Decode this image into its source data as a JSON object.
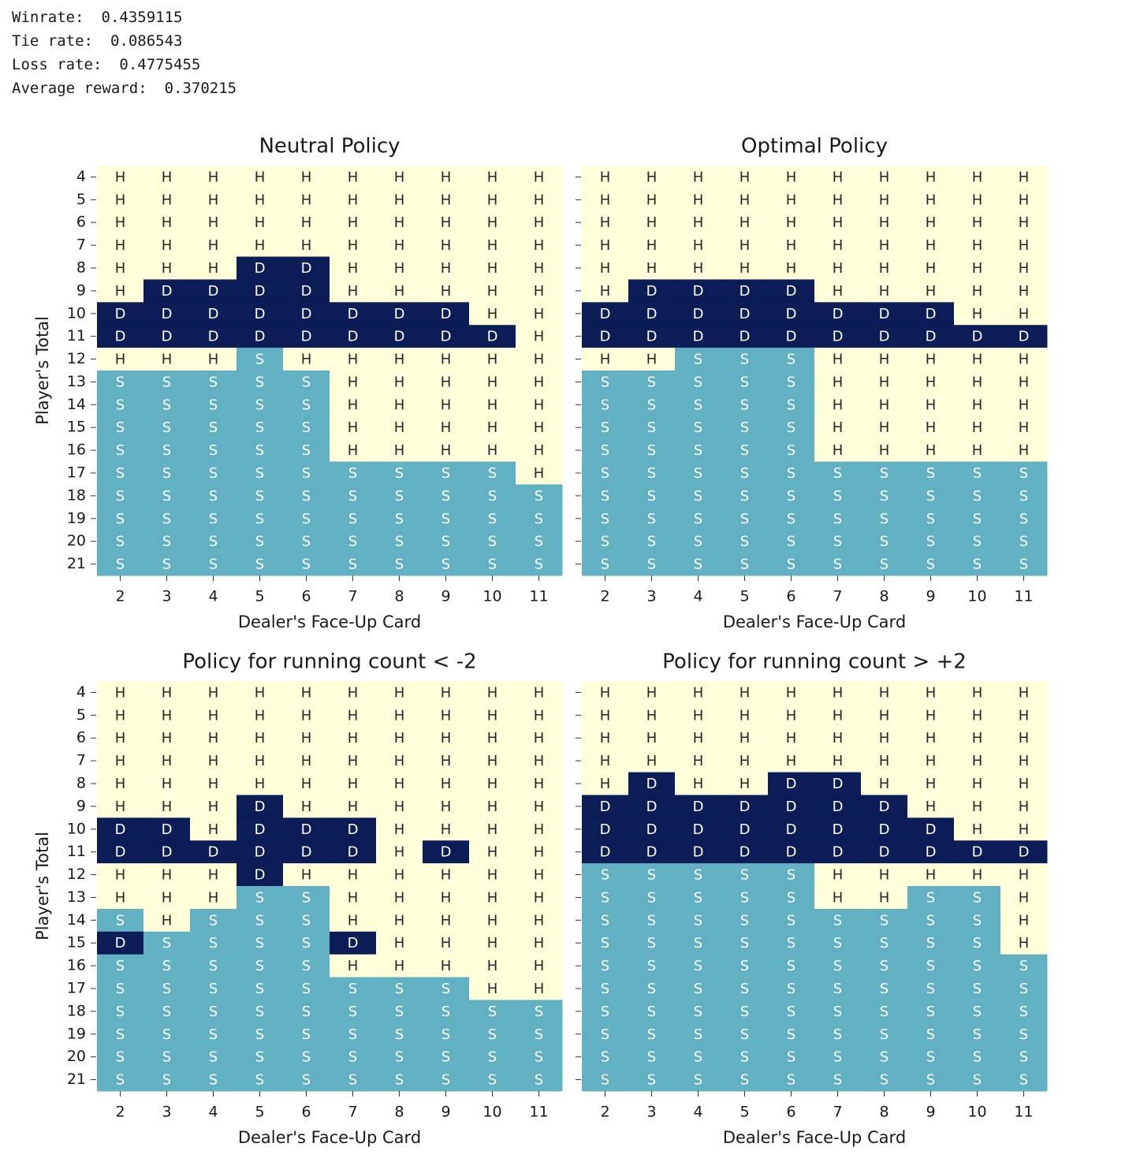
{
  "stats": [
    {
      "label": "Winrate:",
      "value": 0.4359115
    },
    {
      "label": "Tie rate:",
      "value": 0.086543
    },
    {
      "label": "Loss rate:",
      "value": 0.4775455
    },
    {
      "label": "Average reward:",
      "value": 0.370215
    }
  ],
  "chart_data": [
    {
      "type": "heatmap",
      "title": "Neutral Policy",
      "xlabel": "Dealer's Face-Up Card",
      "ylabel": "Player's Total",
      "x": [
        2,
        3,
        4,
        5,
        6,
        7,
        8,
        9,
        10,
        11
      ],
      "y": [
        4,
        5,
        6,
        7,
        8,
        9,
        10,
        11,
        12,
        13,
        14,
        15,
        16,
        17,
        18,
        19,
        20,
        21
      ],
      "cell_colors": {
        "H": "#ffffd9",
        "S": "#62b1c3",
        "D": "#0b1c57"
      },
      "cells": [
        [
          "H",
          "H",
          "H",
          "H",
          "H",
          "H",
          "H",
          "H",
          "H",
          "H"
        ],
        [
          "H",
          "H",
          "H",
          "H",
          "H",
          "H",
          "H",
          "H",
          "H",
          "H"
        ],
        [
          "H",
          "H",
          "H",
          "H",
          "H",
          "H",
          "H",
          "H",
          "H",
          "H"
        ],
        [
          "H",
          "H",
          "H",
          "H",
          "H",
          "H",
          "H",
          "H",
          "H",
          "H"
        ],
        [
          "H",
          "H",
          "H",
          "D",
          "D",
          "H",
          "H",
          "H",
          "H",
          "H"
        ],
        [
          "H",
          "D",
          "D",
          "D",
          "D",
          "H",
          "H",
          "H",
          "H",
          "H"
        ],
        [
          "D",
          "D",
          "D",
          "D",
          "D",
          "D",
          "D",
          "D",
          "H",
          "H"
        ],
        [
          "D",
          "D",
          "D",
          "D",
          "D",
          "D",
          "D",
          "D",
          "D",
          "H"
        ],
        [
          "H",
          "H",
          "H",
          "S",
          "H",
          "H",
          "H",
          "H",
          "H",
          "H"
        ],
        [
          "S",
          "S",
          "S",
          "S",
          "S",
          "H",
          "H",
          "H",
          "H",
          "H"
        ],
        [
          "S",
          "S",
          "S",
          "S",
          "S",
          "H",
          "H",
          "H",
          "H",
          "H"
        ],
        [
          "S",
          "S",
          "S",
          "S",
          "S",
          "H",
          "H",
          "H",
          "H",
          "H"
        ],
        [
          "S",
          "S",
          "S",
          "S",
          "S",
          "H",
          "H",
          "H",
          "H",
          "H"
        ],
        [
          "S",
          "S",
          "S",
          "S",
          "S",
          "S",
          "S",
          "S",
          "S",
          "H"
        ],
        [
          "S",
          "S",
          "S",
          "S",
          "S",
          "S",
          "S",
          "S",
          "S",
          "S"
        ],
        [
          "S",
          "S",
          "S",
          "S",
          "S",
          "S",
          "S",
          "S",
          "S",
          "S"
        ],
        [
          "S",
          "S",
          "S",
          "S",
          "S",
          "S",
          "S",
          "S",
          "S",
          "S"
        ],
        [
          "S",
          "S",
          "S",
          "S",
          "S",
          "S",
          "S",
          "S",
          "S",
          "S"
        ]
      ]
    },
    {
      "type": "heatmap",
      "title": "Optimal Policy",
      "xlabel": "Dealer's Face-Up Card",
      "x": [
        2,
        3,
        4,
        5,
        6,
        7,
        8,
        9,
        10,
        11
      ],
      "y": [
        null,
        null,
        null,
        null,
        null,
        null,
        null,
        null,
        null,
        null,
        null,
        null,
        null,
        null,
        null,
        null,
        null,
        null
      ],
      "cell_colors": {
        "H": "#ffffd9",
        "S": "#62b1c3",
        "D": "#0b1c57"
      },
      "cells": [
        [
          "H",
          "H",
          "H",
          "H",
          "H",
          "H",
          "H",
          "H",
          "H",
          "H"
        ],
        [
          "H",
          "H",
          "H",
          "H",
          "H",
          "H",
          "H",
          "H",
          "H",
          "H"
        ],
        [
          "H",
          "H",
          "H",
          "H",
          "H",
          "H",
          "H",
          "H",
          "H",
          "H"
        ],
        [
          "H",
          "H",
          "H",
          "H",
          "H",
          "H",
          "H",
          "H",
          "H",
          "H"
        ],
        [
          "H",
          "H",
          "H",
          "H",
          "H",
          "H",
          "H",
          "H",
          "H",
          "H"
        ],
        [
          "H",
          "D",
          "D",
          "D",
          "D",
          "H",
          "H",
          "H",
          "H",
          "H"
        ],
        [
          "D",
          "D",
          "D",
          "D",
          "D",
          "D",
          "D",
          "D",
          "H",
          "H"
        ],
        [
          "D",
          "D",
          "D",
          "D",
          "D",
          "D",
          "D",
          "D",
          "D",
          "D"
        ],
        [
          "H",
          "H",
          "S",
          "S",
          "S",
          "H",
          "H",
          "H",
          "H",
          "H"
        ],
        [
          "S",
          "S",
          "S",
          "S",
          "S",
          "H",
          "H",
          "H",
          "H",
          "H"
        ],
        [
          "S",
          "S",
          "S",
          "S",
          "S",
          "H",
          "H",
          "H",
          "H",
          "H"
        ],
        [
          "S",
          "S",
          "S",
          "S",
          "S",
          "H",
          "H",
          "H",
          "H",
          "H"
        ],
        [
          "S",
          "S",
          "S",
          "S",
          "S",
          "H",
          "H",
          "H",
          "H",
          "H"
        ],
        [
          "S",
          "S",
          "S",
          "S",
          "S",
          "S",
          "S",
          "S",
          "S",
          "S"
        ],
        [
          "S",
          "S",
          "S",
          "S",
          "S",
          "S",
          "S",
          "S",
          "S",
          "S"
        ],
        [
          "S",
          "S",
          "S",
          "S",
          "S",
          "S",
          "S",
          "S",
          "S",
          "S"
        ],
        [
          "S",
          "S",
          "S",
          "S",
          "S",
          "S",
          "S",
          "S",
          "S",
          "S"
        ],
        [
          "S",
          "S",
          "S",
          "S",
          "S",
          "S",
          "S",
          "S",
          "S",
          "S"
        ]
      ]
    },
    {
      "type": "heatmap",
      "title": "Policy for running count < -2",
      "xlabel": "Dealer's Face-Up Card",
      "ylabel": "Player's Total",
      "x": [
        2,
        3,
        4,
        5,
        6,
        7,
        8,
        9,
        10,
        11
      ],
      "y": [
        4,
        5,
        6,
        7,
        8,
        9,
        10,
        11,
        12,
        13,
        14,
        15,
        16,
        17,
        18,
        19,
        20,
        21
      ],
      "cell_colors": {
        "H": "#ffffd9",
        "S": "#62b1c3",
        "D": "#0b1c57"
      },
      "cells": [
        [
          "H",
          "H",
          "H",
          "H",
          "H",
          "H",
          "H",
          "H",
          "H",
          "H"
        ],
        [
          "H",
          "H",
          "H",
          "H",
          "H",
          "H",
          "H",
          "H",
          "H",
          "H"
        ],
        [
          "H",
          "H",
          "H",
          "H",
          "H",
          "H",
          "H",
          "H",
          "H",
          "H"
        ],
        [
          "H",
          "H",
          "H",
          "H",
          "H",
          "H",
          "H",
          "H",
          "H",
          "H"
        ],
        [
          "H",
          "H",
          "H",
          "H",
          "H",
          "H",
          "H",
          "H",
          "H",
          "H"
        ],
        [
          "H",
          "H",
          "H",
          "D",
          "H",
          "H",
          "H",
          "H",
          "H",
          "H"
        ],
        [
          "D",
          "D",
          "H",
          "D",
          "D",
          "D",
          "H",
          "H",
          "H",
          "H"
        ],
        [
          "D",
          "D",
          "D",
          "D",
          "D",
          "D",
          "H",
          "D",
          "H",
          "H"
        ],
        [
          "H",
          "H",
          "H",
          "D",
          "H",
          "H",
          "H",
          "H",
          "H",
          "H"
        ],
        [
          "H",
          "H",
          "H",
          "S",
          "S",
          "H",
          "H",
          "H",
          "H",
          "H"
        ],
        [
          "S",
          "H",
          "S",
          "S",
          "S",
          "H",
          "H",
          "H",
          "H",
          "H"
        ],
        [
          "D",
          "S",
          "S",
          "S",
          "S",
          "D",
          "H",
          "H",
          "H",
          "H"
        ],
        [
          "S",
          "S",
          "S",
          "S",
          "S",
          "H",
          "H",
          "H",
          "H",
          "H"
        ],
        [
          "S",
          "S",
          "S",
          "S",
          "S",
          "S",
          "S",
          "S",
          "H",
          "H"
        ],
        [
          "S",
          "S",
          "S",
          "S",
          "S",
          "S",
          "S",
          "S",
          "S",
          "S"
        ],
        [
          "S",
          "S",
          "S",
          "S",
          "S",
          "S",
          "S",
          "S",
          "S",
          "S"
        ],
        [
          "S",
          "S",
          "S",
          "S",
          "S",
          "S",
          "S",
          "S",
          "S",
          "S"
        ],
        [
          "S",
          "S",
          "S",
          "S",
          "S",
          "S",
          "S",
          "S",
          "S",
          "S"
        ]
      ]
    },
    {
      "type": "heatmap",
      "title": "Policy for running count > +2",
      "xlabel": "Dealer's Face-Up Card",
      "x": [
        2,
        3,
        4,
        5,
        6,
        7,
        8,
        9,
        10,
        11
      ],
      "y": [
        null,
        null,
        null,
        null,
        null,
        null,
        null,
        null,
        null,
        null,
        null,
        null,
        null,
        null,
        null,
        null,
        null,
        null
      ],
      "cell_colors": {
        "H": "#ffffd9",
        "S": "#62b1c3",
        "D": "#0b1c57"
      },
      "cells": [
        [
          "H",
          "H",
          "H",
          "H",
          "H",
          "H",
          "H",
          "H",
          "H",
          "H"
        ],
        [
          "H",
          "H",
          "H",
          "H",
          "H",
          "H",
          "H",
          "H",
          "H",
          "H"
        ],
        [
          "H",
          "H",
          "H",
          "H",
          "H",
          "H",
          "H",
          "H",
          "H",
          "H"
        ],
        [
          "H",
          "H",
          "H",
          "H",
          "H",
          "H",
          "H",
          "H",
          "H",
          "H"
        ],
        [
          "H",
          "D",
          "H",
          "H",
          "D",
          "D",
          "H",
          "H",
          "H",
          "H"
        ],
        [
          "D",
          "D",
          "D",
          "D",
          "D",
          "D",
          "D",
          "H",
          "H",
          "H"
        ],
        [
          "D",
          "D",
          "D",
          "D",
          "D",
          "D",
          "D",
          "D",
          "H",
          "H"
        ],
        [
          "D",
          "D",
          "D",
          "D",
          "D",
          "D",
          "D",
          "D",
          "D",
          "D"
        ],
        [
          "S",
          "S",
          "S",
          "S",
          "S",
          "H",
          "H",
          "H",
          "H",
          "H"
        ],
        [
          "S",
          "S",
          "S",
          "S",
          "S",
          "H",
          "H",
          "S",
          "S",
          "H"
        ],
        [
          "S",
          "S",
          "S",
          "S",
          "S",
          "S",
          "S",
          "S",
          "S",
          "H"
        ],
        [
          "S",
          "S",
          "S",
          "S",
          "S",
          "S",
          "S",
          "S",
          "S",
          "H"
        ],
        [
          "S",
          "S",
          "S",
          "S",
          "S",
          "S",
          "S",
          "S",
          "S",
          "S"
        ],
        [
          "S",
          "S",
          "S",
          "S",
          "S",
          "S",
          "S",
          "S",
          "S",
          "S"
        ],
        [
          "S",
          "S",
          "S",
          "S",
          "S",
          "S",
          "S",
          "S",
          "S",
          "S"
        ],
        [
          "S",
          "S",
          "S",
          "S",
          "S",
          "S",
          "S",
          "S",
          "S",
          "S"
        ],
        [
          "S",
          "S",
          "S",
          "S",
          "S",
          "S",
          "S",
          "S",
          "S",
          "S"
        ],
        [
          "S",
          "S",
          "S",
          "S",
          "S",
          "S",
          "S",
          "S",
          "S",
          "S"
        ]
      ]
    }
  ]
}
